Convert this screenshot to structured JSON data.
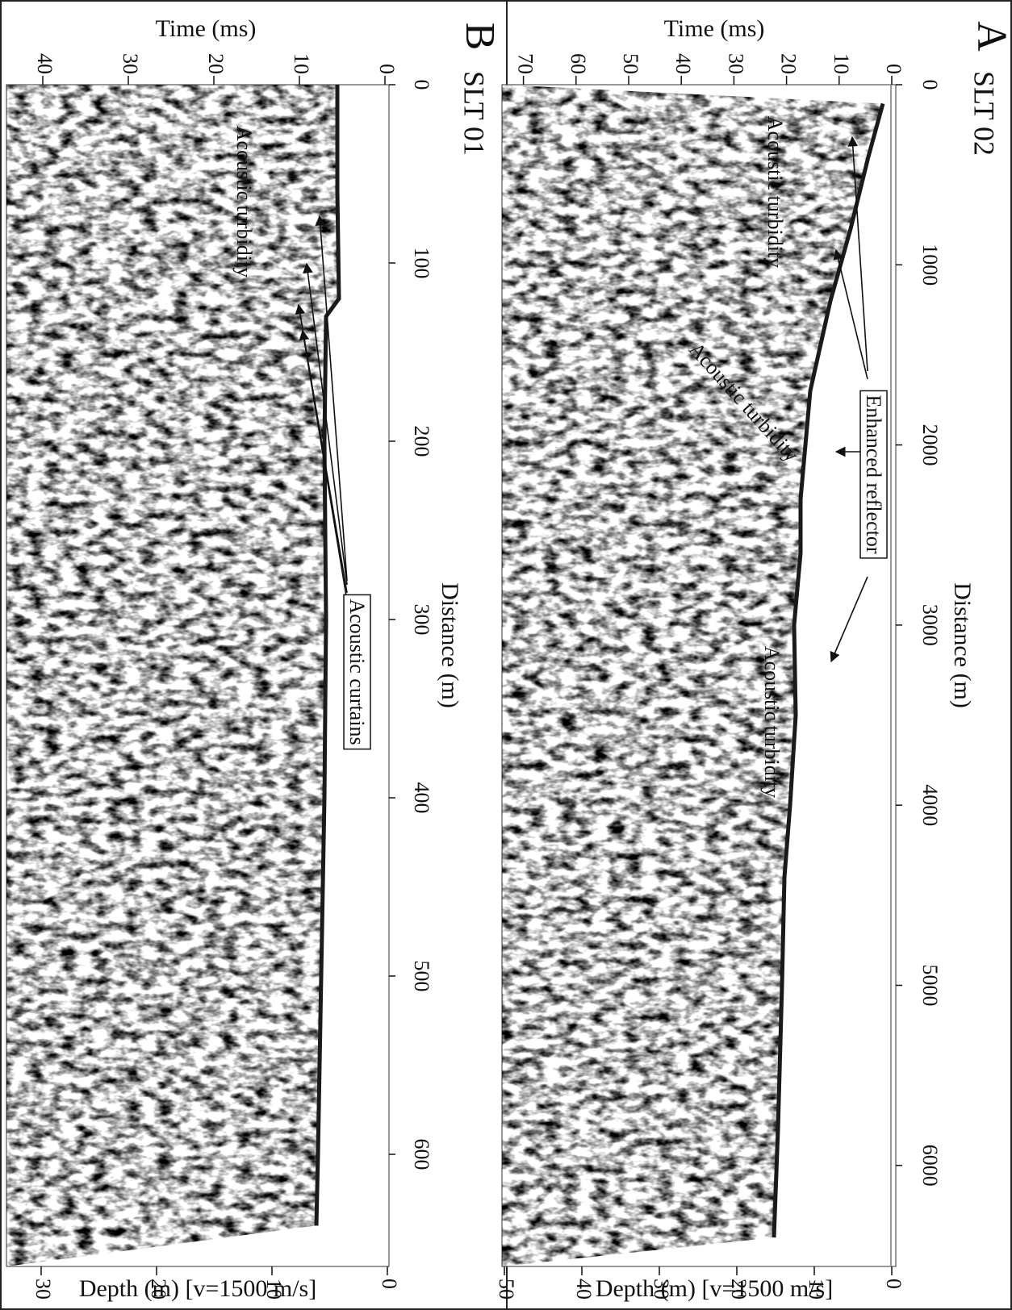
{
  "panels": [
    {
      "letter": "A",
      "name": "SLT 02",
      "time_axis": {
        "title": "Time (ms)",
        "ticks": [
          0,
          10,
          20,
          30,
          40,
          50,
          60,
          70
        ]
      },
      "depth_axis": {
        "title": "Depth (m) [v=1500 m/s]",
        "ticks": [
          0,
          10,
          20,
          30,
          40,
          50
        ]
      },
      "distance_axis": {
        "title": "Distance (m)",
        "ticks": [
          0,
          1000,
          2000,
          3000,
          4000,
          5000,
          6000
        ]
      },
      "annotations": [
        "Acoustic turbidity",
        "Acoustic turbidity",
        "Acoustic turbidity",
        "Enhanced reflector"
      ]
    },
    {
      "letter": "B",
      "name": "SLT 01",
      "time_axis": {
        "title": "Time (ms)",
        "ticks": [
          0,
          10,
          20,
          30,
          40
        ]
      },
      "depth_axis": {
        "title": "Depth (m) [v=1500 m/s]",
        "ticks": [
          0,
          10,
          20,
          30
        ]
      },
      "distance_axis": {
        "title": "Distance (m)",
        "ticks": [
          0,
          100,
          200,
          300,
          400,
          500,
          600
        ]
      },
      "annotations": [
        "Acoustic turbidity",
        "Acoustic curtains"
      ]
    }
  ]
}
